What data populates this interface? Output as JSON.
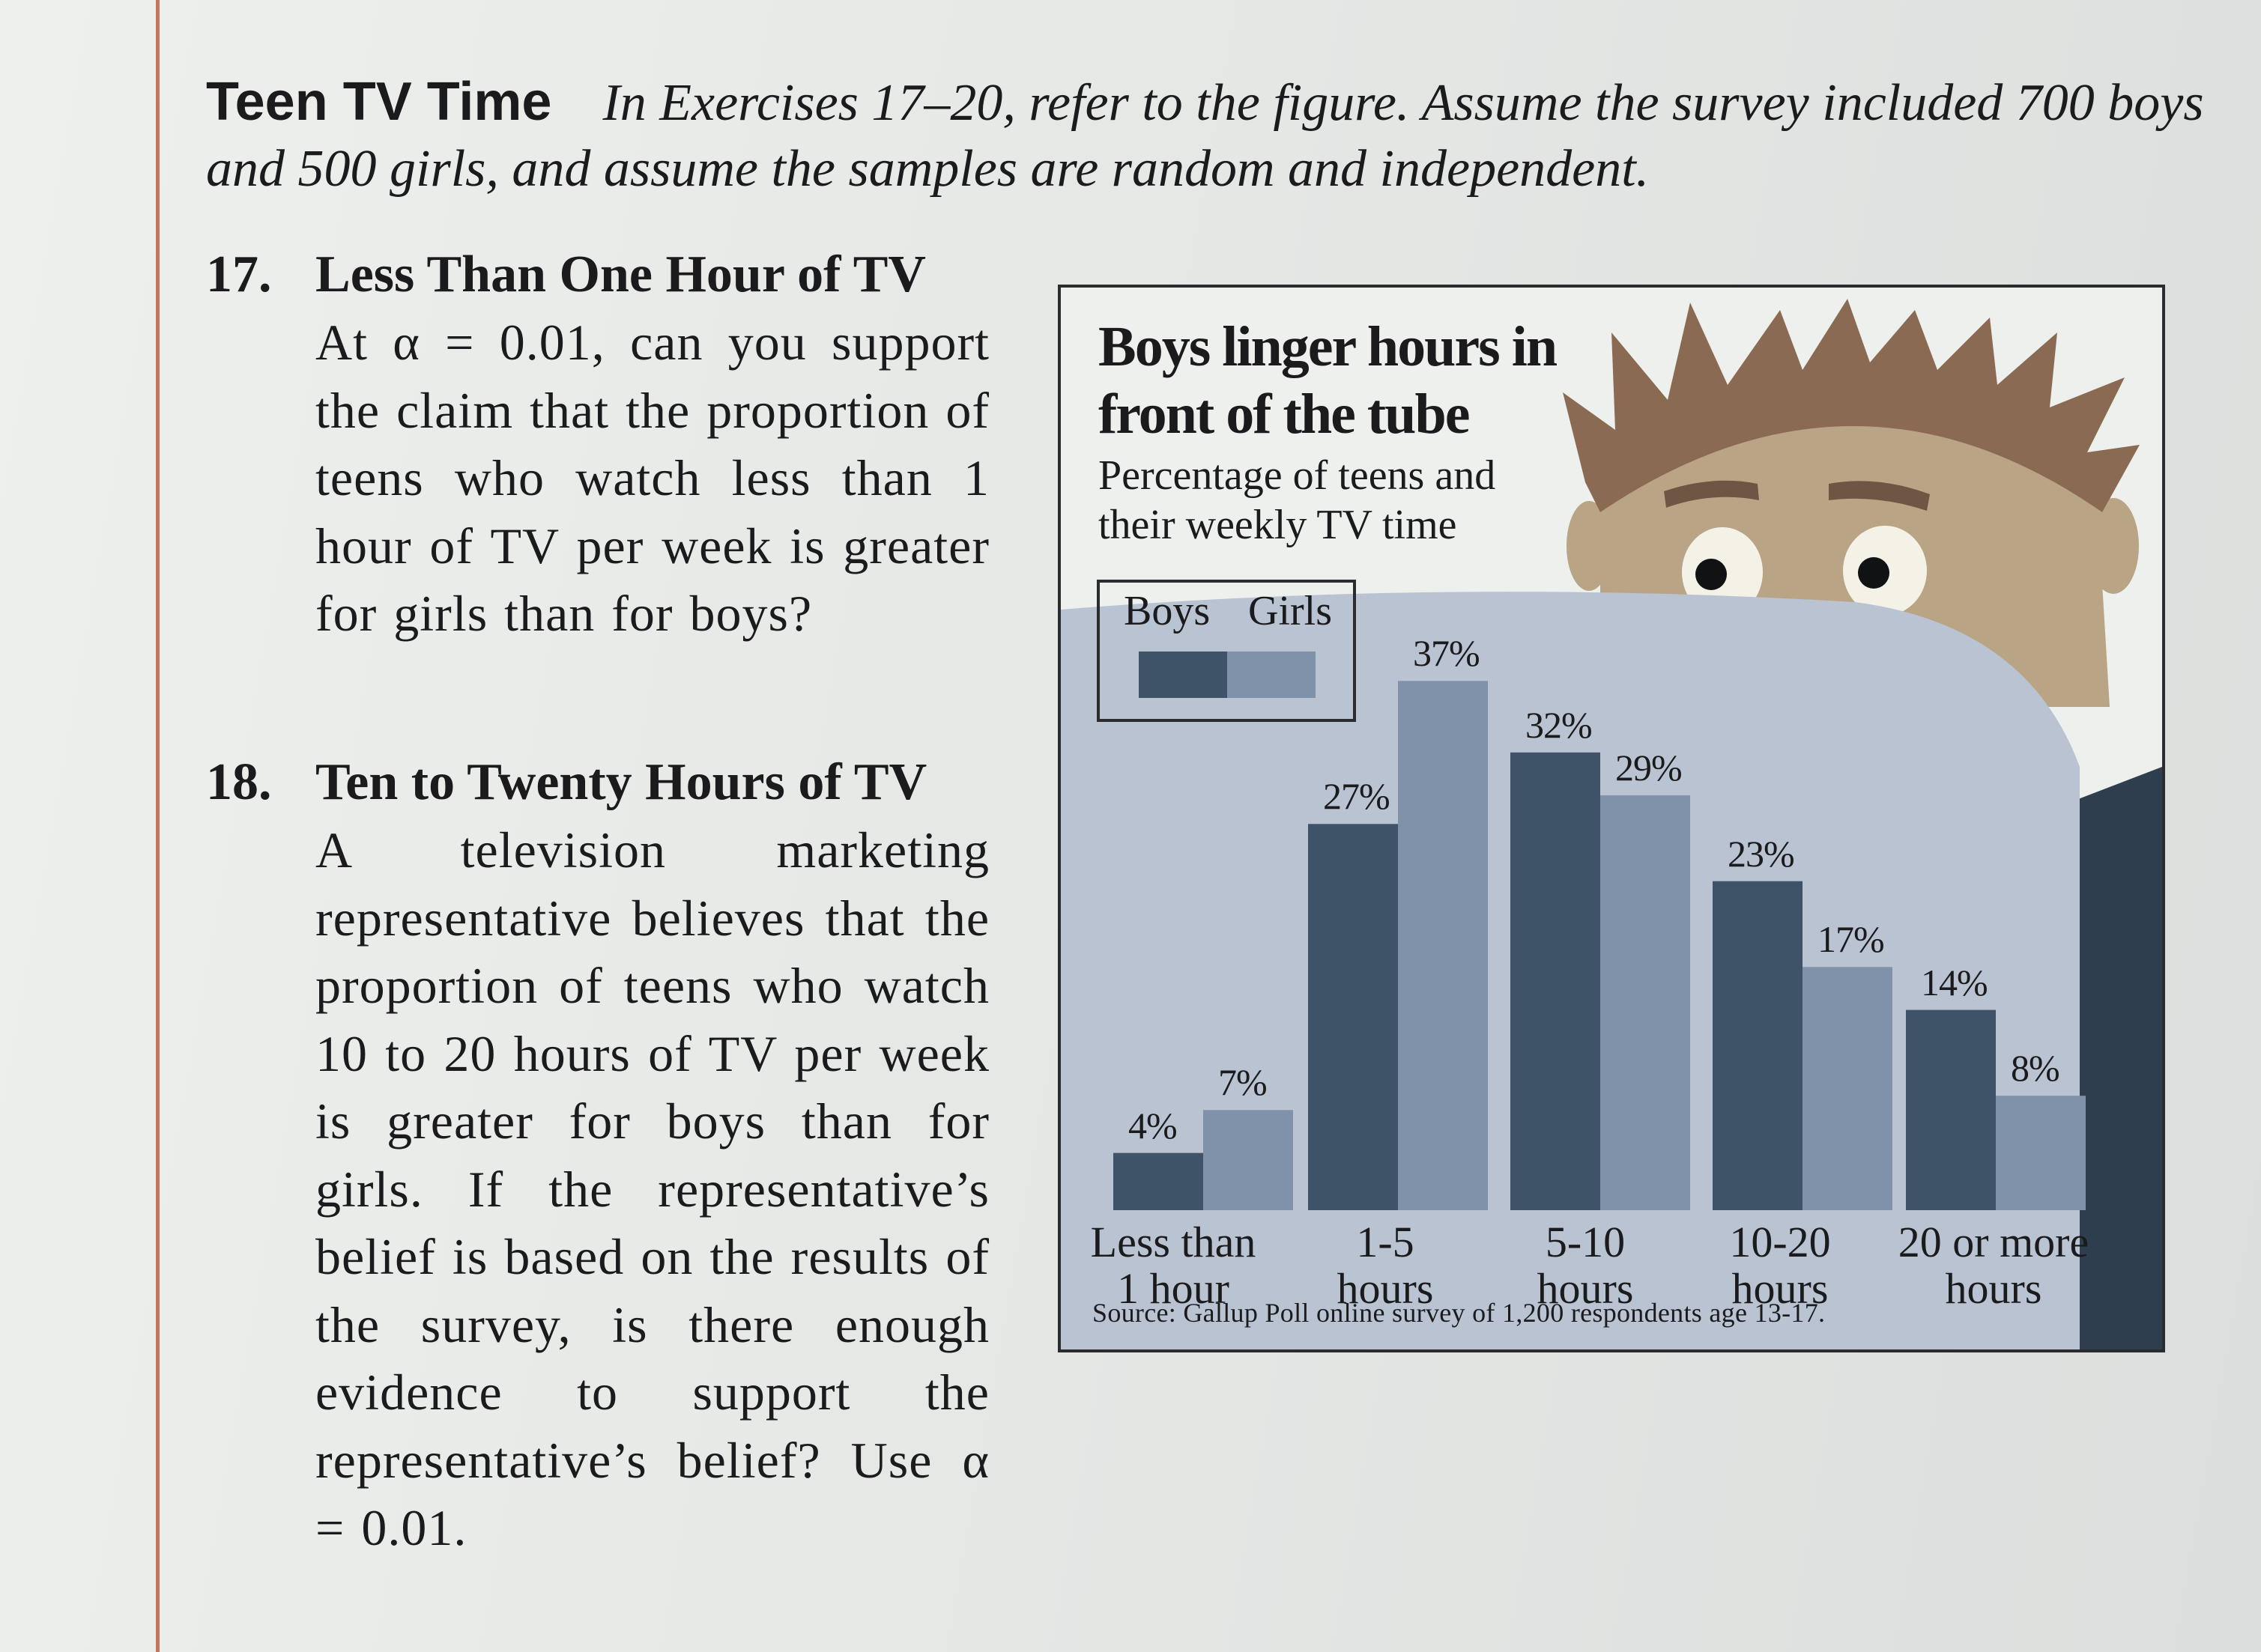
{
  "heading": {
    "title": "Teen TV Time",
    "intro": "In Exercises 17–20, refer to the figure. Assume the survey included 700 boys and 500 girls, and assume the samples are random and independent."
  },
  "exercises": [
    {
      "number": "17.",
      "title": "Less Than One Hour of TV",
      "body": "At α = 0.01, can you support the claim that the proportion of teens who watch less than 1 hour of TV per week is greater for girls than for boys?"
    },
    {
      "number": "18.",
      "title": "Ten to Twenty Hours of TV",
      "body": "A television marketing representative believes that the proportion of teens who watch 10 to 20 hours of TV per week is greater for boys than for girls. If the representative’s belief is based on the results of the survey, is there enough evidence to support the representative’s belief? Use α = 0.01."
    }
  ],
  "chart_data": {
    "type": "bar",
    "title": "Boys linger hours in front of the tube",
    "subtitle": "Percentage of teens and their weekly TV time",
    "categories": [
      "Less than 1 hour",
      "1-5 hours",
      "5-10 hours",
      "10-20 hours",
      "20 or more hours"
    ],
    "category_lines": [
      [
        "Less than",
        "1 hour"
      ],
      [
        "1-5",
        "hours"
      ],
      [
        "5-10",
        "hours"
      ],
      [
        "10-20",
        "hours"
      ],
      [
        "20 or more",
        "hours"
      ]
    ],
    "series": [
      {
        "name": "Boys",
        "values": [
          4,
          27,
          32,
          23,
          14
        ],
        "labels": [
          "4%",
          "27%",
          "32%",
          "23%",
          "14%"
        ],
        "color": "#3f5368"
      },
      {
        "name": "Girls",
        "values": [
          7,
          37,
          29,
          17,
          8
        ],
        "labels": [
          "7%",
          "37%",
          "29%",
          "17%",
          "8%"
        ],
        "color": "#7f92a9"
      }
    ],
    "ylim": [
      0,
      40
    ],
    "legend_position": "top-left",
    "source": "Source: Gallup Poll online survey of 1,200 respondents age 13-17."
  },
  "colors": {
    "margin_line": "#c3765a",
    "boys_bar": "#3f5368",
    "girls_bar": "#7f92a9",
    "blanket": "#b9c3d2",
    "face": "#b9a585",
    "hair": "#8a6a52",
    "shirt": "#2f3e4e"
  },
  "illustration": {
    "description_icon": "teen-peeking-over-blanket-icon"
  }
}
